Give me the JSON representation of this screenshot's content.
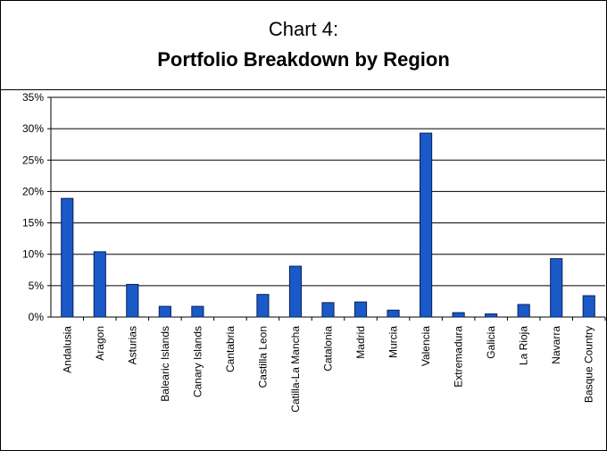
{
  "chart_data": {
    "type": "bar",
    "title": "Chart 4:",
    "subtitle": "Portfolio Breakdown by Region",
    "categories": [
      "Andalusia",
      "Aragon",
      "Asturias",
      "Balearic Islands",
      "Canary Islands",
      "Cantabria",
      "Castilla Leon",
      "Catilla-La Mancha",
      "Catalonia",
      "Madrid",
      "Murcia",
      "Valencia",
      "Extremadura",
      "Galicia",
      "La Rioja",
      "Navarra",
      "Basque Country"
    ],
    "values": [
      18.9,
      10.4,
      5.2,
      1.7,
      1.7,
      0,
      3.6,
      8.1,
      2.3,
      2.4,
      1.1,
      29.3,
      0.7,
      0.5,
      2.0,
      9.3,
      3.4
    ],
    "color": "#1a5ac8",
    "ylim": [
      0,
      35
    ],
    "yticks": [
      {
        "value": 0,
        "label": "0%"
      },
      {
        "value": 5,
        "label": "5%"
      },
      {
        "value": 10,
        "label": "10%"
      },
      {
        "value": 15,
        "label": "15%"
      },
      {
        "value": 20,
        "label": "20%"
      },
      {
        "value": 25,
        "label": "25%"
      },
      {
        "value": 30,
        "label": "30%"
      },
      {
        "value": 35,
        "label": "35%"
      }
    ],
    "grid": true
  }
}
